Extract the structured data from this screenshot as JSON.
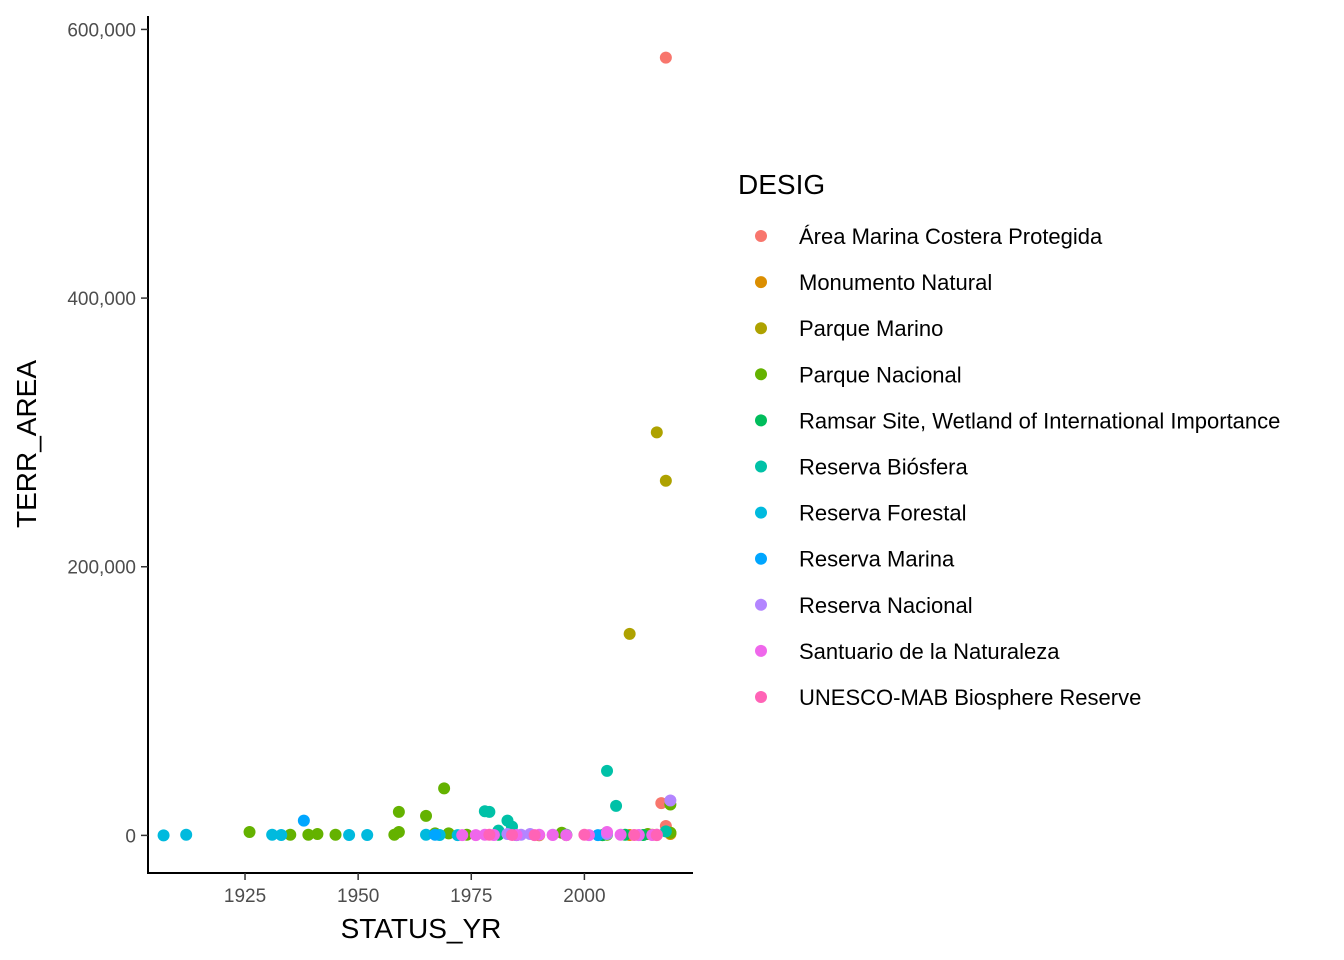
{
  "chart_data": {
    "type": "scatter",
    "title": "",
    "xlabel": "STATUS_YR",
    "ylabel": "TERR_AREA",
    "xlim": [
      1904,
      2024
    ],
    "ylim": [
      -28000,
      610000
    ],
    "x_ticks": [
      {
        "value": 1925,
        "label": "1925"
      },
      {
        "value": 1950,
        "label": "1950"
      },
      {
        "value": 1975,
        "label": "1975"
      },
      {
        "value": 2000,
        "label": "2000"
      }
    ],
    "y_ticks": [
      {
        "value": 0,
        "label": "0"
      },
      {
        "value": 200000,
        "label": "200,000"
      },
      {
        "value": 400000,
        "label": "400,000"
      },
      {
        "value": 600000,
        "label": "600,000"
      }
    ],
    "grid": false,
    "legend": {
      "title": "DESIG",
      "position": "right"
    },
    "series": [
      {
        "name": "Área Marina Costera Protegida",
        "color": "#F8766D",
        "points": [
          [
            2018,
            579000
          ],
          [
            2017,
            24000
          ],
          [
            2018,
            7000
          ],
          [
            2019,
            1500
          ],
          [
            2016,
            500
          ]
        ]
      },
      {
        "name": "Monumento Natural",
        "color": "#DB8E00",
        "points": [
          [
            2019,
            1000
          ],
          [
            2015,
            500
          ],
          [
            2010,
            300
          ],
          [
            2004,
            200
          ],
          [
            1996,
            200
          ],
          [
            1990,
            100
          ]
        ]
      },
      {
        "name": "Parque Marino",
        "color": "#AEA200",
        "points": [
          [
            2016,
            300000
          ],
          [
            2018,
            264000
          ],
          [
            2010,
            150000
          ],
          [
            2019,
            2000
          ]
        ]
      },
      {
        "name": "Parque Nacional",
        "color": "#64B200",
        "points": [
          [
            1926,
            2500
          ],
          [
            1935,
            500
          ],
          [
            1939,
            500
          ],
          [
            1941,
            1000
          ],
          [
            1945,
            500
          ],
          [
            1958,
            500
          ],
          [
            1959,
            2500
          ],
          [
            1959,
            17500
          ],
          [
            1965,
            14500
          ],
          [
            1967,
            1500
          ],
          [
            1969,
            35000
          ],
          [
            1970,
            1500
          ],
          [
            1974,
            500
          ],
          [
            1981,
            3000
          ],
          [
            1995,
            2000
          ],
          [
            2005,
            500
          ],
          [
            2014,
            1000
          ],
          [
            2019,
            23000
          ],
          [
            2019,
            2000
          ]
        ]
      },
      {
        "name": "Ramsar Site, Wetland of International Importance",
        "color": "#00BD5C",
        "points": [
          [
            1981,
            500
          ],
          [
            1996,
            500
          ],
          [
            2004,
            200
          ],
          [
            2009,
            500
          ],
          [
            2013,
            300
          ]
        ]
      },
      {
        "name": "Reserva Biósfera",
        "color": "#00C1A7",
        "points": [
          [
            1978,
            18000
          ],
          [
            1979,
            17500
          ],
          [
            1983,
            11000
          ],
          [
            1984,
            6500
          ],
          [
            1981,
            3500
          ],
          [
            2005,
            48000
          ],
          [
            2007,
            22000
          ],
          [
            2018,
            3000
          ]
        ]
      },
      {
        "name": "Reserva Forestal",
        "color": "#00BADE",
        "points": [
          [
            1907,
            0
          ],
          [
            1912,
            500
          ],
          [
            1931,
            500
          ],
          [
            1933,
            300
          ],
          [
            1948,
            300
          ],
          [
            1952,
            300
          ],
          [
            1965,
            500
          ],
          [
            1968,
            300
          ],
          [
            1972,
            200
          ]
        ]
      },
      {
        "name": "Reserva Marina",
        "color": "#00A6FF",
        "points": [
          [
            1938,
            11000
          ],
          [
            1967,
            500
          ],
          [
            1985,
            200
          ],
          [
            2003,
            200
          ]
        ]
      },
      {
        "name": "Reserva Nacional",
        "color": "#B385FF",
        "points": [
          [
            1983,
            1000
          ],
          [
            1986,
            500
          ],
          [
            1988,
            1000
          ],
          [
            1993,
            500
          ],
          [
            2005,
            1000
          ],
          [
            2012,
            200
          ],
          [
            2019,
            26000
          ]
        ]
      },
      {
        "name": "Santuario de la Naturaleza",
        "color": "#EF67EB",
        "points": [
          [
            1973,
            200
          ],
          [
            1976,
            200
          ],
          [
            1978,
            500
          ],
          [
            1980,
            300
          ],
          [
            1985,
            300
          ],
          [
            1990,
            500
          ],
          [
            1993,
            300
          ],
          [
            1996,
            200
          ],
          [
            2001,
            200
          ],
          [
            2005,
            2500
          ],
          [
            2008,
            500
          ],
          [
            2012,
            300
          ],
          [
            2015,
            300
          ],
          [
            2016,
            500
          ]
        ]
      },
      {
        "name": "UNESCO-MAB Biosphere Reserve",
        "color": "#FF63B6",
        "points": [
          [
            1979,
            500
          ],
          [
            1984,
            300
          ],
          [
            1989,
            200
          ],
          [
            2000,
            500
          ],
          [
            2011,
            300
          ],
          [
            2016,
            200
          ]
        ]
      }
    ]
  }
}
